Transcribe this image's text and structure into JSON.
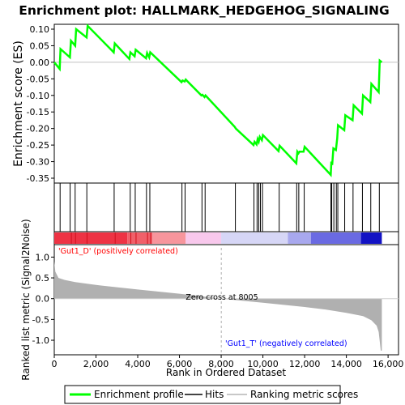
{
  "title": "Enrichment plot: HALLMARK_HEDGEHOG_SIGNALING",
  "colors": {
    "es_line": "#00ff00",
    "hits": "#000000",
    "ranked_fill": "#b0b0b0",
    "zero_line": "#c0c0c0",
    "pos_label": "#ff0000",
    "neg_label": "#0000ff",
    "zero_cross_line": "#b0b0b0"
  },
  "chart_data": [
    {
      "type": "line",
      "panel": "enrichment-profile",
      "ylabel": "Enrichment score (ES)",
      "xlim": [
        0,
        16500
      ],
      "ylim": [
        -0.35,
        0.12
      ],
      "yticks": [
        0.1,
        0.05,
        0.0,
        -0.05,
        -0.1,
        -0.15,
        -0.2,
        -0.25,
        -0.3,
        -0.35
      ],
      "ytick_labels": [
        "0.10",
        "0.05",
        "0.00",
        "-0.05",
        "-0.10",
        "-0.15",
        "-0.20",
        "-0.25",
        "-0.30",
        "-0.35"
      ],
      "series": [
        {
          "name": "Enrichment profile",
          "x": [
            0,
            260,
            300,
            750,
            800,
            1000,
            1050,
            1550,
            1600,
            2850,
            2900,
            3600,
            3650,
            3850,
            3900,
            4400,
            4450,
            4550,
            4600,
            6100,
            6150,
            6250,
            6300,
            7050,
            7100,
            7200,
            7250,
            8650,
            8700,
            9550,
            9600,
            9700,
            9750,
            9800,
            9850,
            9950,
            10000,
            10750,
            10800,
            11600,
            11650,
            11700,
            11750,
            11950,
            12000,
            13250,
            13280,
            13320,
            13380,
            13500,
            13560,
            13600,
            13900,
            13950,
            14300,
            14350,
            14750,
            14800,
            15150,
            15200,
            15550,
            15600,
            15700
          ],
          "y": [
            0.0,
            -0.02,
            0.04,
            0.015,
            0.065,
            0.05,
            0.1,
            0.075,
            0.11,
            0.03,
            0.057,
            0.01,
            0.03,
            0.018,
            0.038,
            0.012,
            0.028,
            0.015,
            0.03,
            -0.06,
            -0.055,
            -0.058,
            -0.052,
            -0.1,
            -0.098,
            -0.105,
            -0.1,
            -0.195,
            -0.2,
            -0.25,
            -0.24,
            -0.248,
            -0.232,
            -0.24,
            -0.225,
            -0.235,
            -0.22,
            -0.268,
            -0.252,
            -0.305,
            -0.27,
            -0.275,
            -0.27,
            -0.27,
            -0.255,
            -0.34,
            -0.3,
            -0.31,
            -0.26,
            -0.265,
            -0.23,
            -0.19,
            -0.205,
            -0.16,
            -0.175,
            -0.13,
            -0.155,
            -0.1,
            -0.12,
            -0.065,
            -0.09,
            0.005,
            0.0
          ]
        }
      ],
      "legend": [
        "Enrichment profile",
        "Hits",
        "Ranking metric scores"
      ],
      "legend_placement": "bottom"
    },
    {
      "type": "hits",
      "panel": "hits",
      "hit_positions": [
        280,
        760,
        1000,
        1560,
        2870,
        3640,
        3880,
        4420,
        4580,
        6120,
        6270,
        7080,
        7230,
        8680,
        9570,
        9720,
        9800,
        9880,
        9980,
        10780,
        11620,
        11720,
        11980,
        13260,
        13300,
        13400,
        13520,
        13590,
        13920,
        14320,
        14770,
        15170,
        15580
      ]
    },
    {
      "type": "heatmap",
      "panel": "rank-colorbar",
      "description_colors": [
        "#e8303a",
        "#f58a94",
        "#f8c6ea",
        "#d8d8f8",
        "#7a7ae8",
        "#1010c0"
      ],
      "segments": [
        {
          "from": 0,
          "to": 3500,
          "color": "#ee3344"
        },
        {
          "from": 3500,
          "to": 4700,
          "color": "#f0606a"
        },
        {
          "from": 4700,
          "to": 6300,
          "color": "#f7959c"
        },
        {
          "from": 6300,
          "to": 8000,
          "color": "#f8c8ec"
        },
        {
          "from": 8000,
          "to": 11200,
          "color": "#d6d6f6"
        },
        {
          "from": 11200,
          "to": 12300,
          "color": "#a8a8ee"
        },
        {
          "from": 12300,
          "to": 14700,
          "color": "#6a6ae2"
        },
        {
          "from": 14700,
          "to": 15700,
          "color": "#1212c4"
        }
      ]
    },
    {
      "type": "area",
      "panel": "ranked-list-metric",
      "ylabel": "Ranked list metric (Signal2Noise)",
      "xlabel": "Rank in Ordered Dataset",
      "xlim": [
        0,
        16500
      ],
      "ylim": [
        -1.35,
        1.3
      ],
      "xticks": [
        0,
        2000,
        4000,
        6000,
        8000,
        10000,
        12000,
        14000,
        16000
      ],
      "xtick_labels": [
        "0",
        "2,000",
        "4,000",
        "6,000",
        "8,000",
        "10,000",
        "12,000",
        "14,000",
        "16,000"
      ],
      "yticks": [
        1.0,
        0.5,
        0.0,
        -0.5,
        -1.0
      ],
      "ytick_labels": [
        "1.0",
        "0.5",
        "0.0",
        "-0.5",
        "-1.0"
      ],
      "x": [
        0,
        50,
        200,
        500,
        1000,
        2000,
        4000,
        6000,
        8005,
        10000,
        12000,
        13000,
        14000,
        14800,
        15200,
        15450,
        15550,
        15650,
        15700
      ],
      "y": [
        0.9,
        0.65,
        0.5,
        0.45,
        0.4,
        0.33,
        0.22,
        0.12,
        0.0,
        -0.1,
        -0.2,
        -0.26,
        -0.34,
        -0.42,
        -0.52,
        -0.65,
        -0.8,
        -1.25,
        -1.25
      ],
      "zero_cross": 8005,
      "zero_cross_label": "Zero cross at 8005",
      "pos_label": "'Gut1_D' (positively correlated)",
      "neg_label": "'Gut1_T' (negatively correlated)"
    }
  ]
}
